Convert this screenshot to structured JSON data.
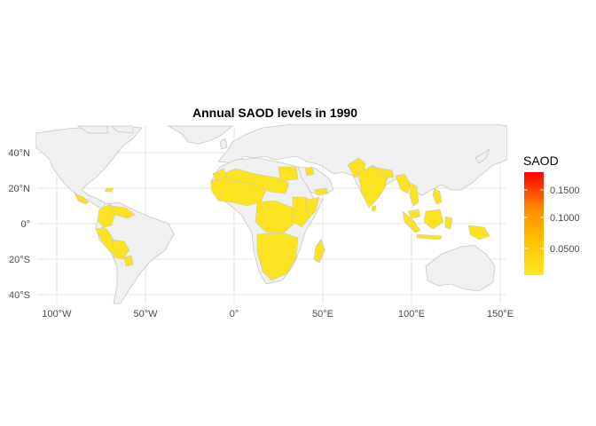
{
  "title": "Annual SAOD levels in 1990",
  "x_ticks": [
    "100°W",
    "50°W",
    "0°",
    "50°E",
    "100°E",
    "150°E"
  ],
  "y_ticks": [
    "40°N",
    "20°N",
    "0°",
    "20°S",
    "40°S"
  ],
  "legend": {
    "title": "SAOD",
    "labels": [
      "0.1500",
      "0.1000",
      "0.0500"
    ],
    "colors": {
      "low": "#fde725",
      "mid": "#ffa500",
      "high": "#ff0000"
    }
  },
  "colors": {
    "land": "#f0f0f0",
    "border": "#c8c8c8",
    "highlight": "#fbe321"
  }
}
